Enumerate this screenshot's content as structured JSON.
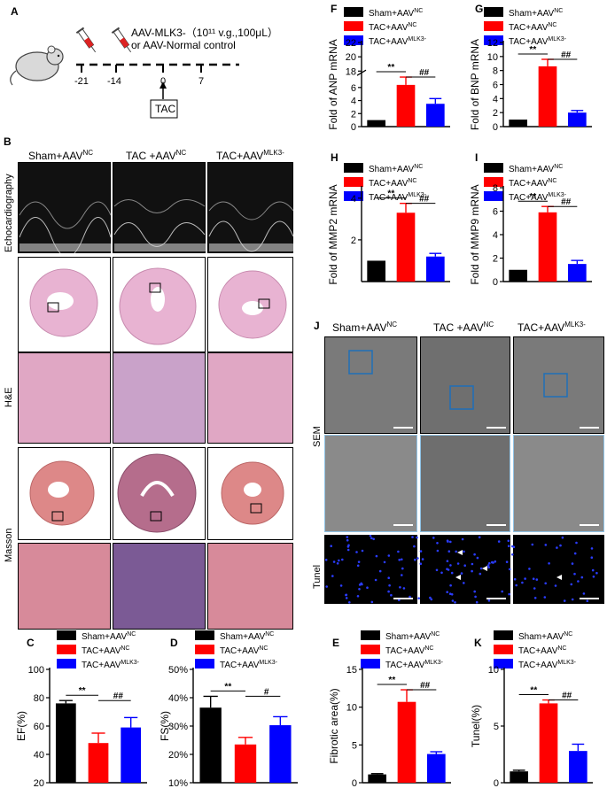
{
  "panel_A": {
    "letter": "A",
    "treatment_line1": "AAV-MLK3-（10¹¹ v.g.,100μL）",
    "treatment_line2": "or AAV-Normal control",
    "timeline_ticks": [
      "-21",
      "-14",
      "0",
      "7"
    ],
    "tac_box": "TAC"
  },
  "panel_B": {
    "letter": "B",
    "groups": [
      "Sham+AAV",
      "TAC +AAV",
      "TAC+AAV"
    ],
    "groups_sup": [
      "NC",
      "NC",
      "MLK3-"
    ],
    "rows": [
      "Echocardiography",
      "H&E",
      "Masson"
    ]
  },
  "panel_J": {
    "letter": "J",
    "groups": [
      "Sham+AAV",
      "TAC +AAV",
      "TAC+AAV"
    ],
    "groups_sup": [
      "NC",
      "NC",
      "MLK3-"
    ],
    "rows": [
      "SEM",
      "Tunel"
    ]
  },
  "legend": {
    "items": [
      "Sham+AAV",
      "TAC+AAV",
      "TAC+AAV"
    ],
    "sups": [
      "NC",
      "NC",
      "MLK3-"
    ]
  },
  "colors": {
    "sham": "#000000",
    "tac": "#ff0000",
    "mlk3": "#0000ff"
  },
  "chart_data": [
    {
      "letter": "F",
      "type": "bar",
      "ylabel": "Fold of ANP mRNA",
      "yticks": [
        "0",
        "2",
        "4",
        "6",
        "18",
        "20",
        "22"
      ],
      "axis_break": true,
      "values": [
        1.0,
        6.4,
        3.5
      ],
      "errors": [
        0,
        1.2,
        0.8
      ],
      "sig": [
        {
          "label": "**"
        },
        {
          "label": "##"
        }
      ]
    },
    {
      "letter": "G",
      "type": "bar",
      "ylabel": "Fold of BNP mRNA",
      "ylim": [
        0,
        12
      ],
      "yticks": [
        "0",
        "2",
        "4",
        "6",
        "8",
        "10",
        "12"
      ],
      "values": [
        1.0,
        8.6,
        2.0
      ],
      "errors": [
        0,
        1.0,
        0.3
      ],
      "sig": [
        {
          "label": "**"
        },
        {
          "label": "##"
        }
      ]
    },
    {
      "letter": "H",
      "type": "bar",
      "ylabel": "Fold of MMP2 mRNA",
      "ylim": [
        0,
        4.5
      ],
      "yticks": [
        "2",
        "4"
      ],
      "values": [
        1.0,
        3.3,
        1.2
      ],
      "errors": [
        0,
        0.45,
        0.15
      ],
      "sig": [
        {
          "label": "**"
        },
        {
          "label": "##"
        }
      ]
    },
    {
      "letter": "I",
      "type": "bar",
      "ylabel": "Fold of MMP9 mRNA",
      "ylim": [
        0,
        8
      ],
      "yticks": [
        "0",
        "2",
        "4",
        "6",
        "8"
      ],
      "values": [
        1.0,
        5.9,
        1.5
      ],
      "errors": [
        0,
        0.5,
        0.3
      ],
      "sig": [
        {
          "label": "**"
        },
        {
          "label": "##"
        }
      ]
    },
    {
      "letter": "C",
      "type": "bar",
      "ylabel": "EF(%)",
      "ylim": [
        20,
        100
      ],
      "yticks": [
        "20",
        "40",
        "60",
        "80",
        "100"
      ],
      "values": [
        76,
        48,
        59
      ],
      "errors": [
        2,
        7,
        7
      ],
      "sig": [
        {
          "label": "**"
        },
        {
          "label": "##"
        }
      ]
    },
    {
      "letter": "D",
      "type": "bar",
      "ylabel": "FS(%)",
      "ylim": [
        10,
        50
      ],
      "yticks": [
        "10%",
        "20%",
        "30%",
        "40%",
        "50%"
      ],
      "values": [
        36.5,
        23.5,
        30.3
      ],
      "errors": [
        4,
        2.5,
        3
      ],
      "sig": [
        {
          "label": "**"
        },
        {
          "label": "#"
        }
      ]
    },
    {
      "letter": "E",
      "type": "bar",
      "ylabel": "Fibrotic area(%)",
      "ylim": [
        0,
        15
      ],
      "yticks": [
        "0",
        "5",
        "10",
        "15"
      ],
      "values": [
        1.1,
        10.7,
        3.8
      ],
      "errors": [
        0.1,
        1.6,
        0.3
      ],
      "sig": [
        {
          "label": "**"
        },
        {
          "label": "##"
        }
      ]
    },
    {
      "letter": "K",
      "type": "bar",
      "ylabel": "Tunel(%)",
      "ylim": [
        0,
        10
      ],
      "yticks": [
        "0",
        "5",
        "10"
      ],
      "values": [
        1.0,
        7.0,
        2.8
      ],
      "errors": [
        0.1,
        0.3,
        0.6
      ],
      "sig": [
        {
          "label": "**"
        },
        {
          "label": "##"
        }
      ]
    }
  ]
}
